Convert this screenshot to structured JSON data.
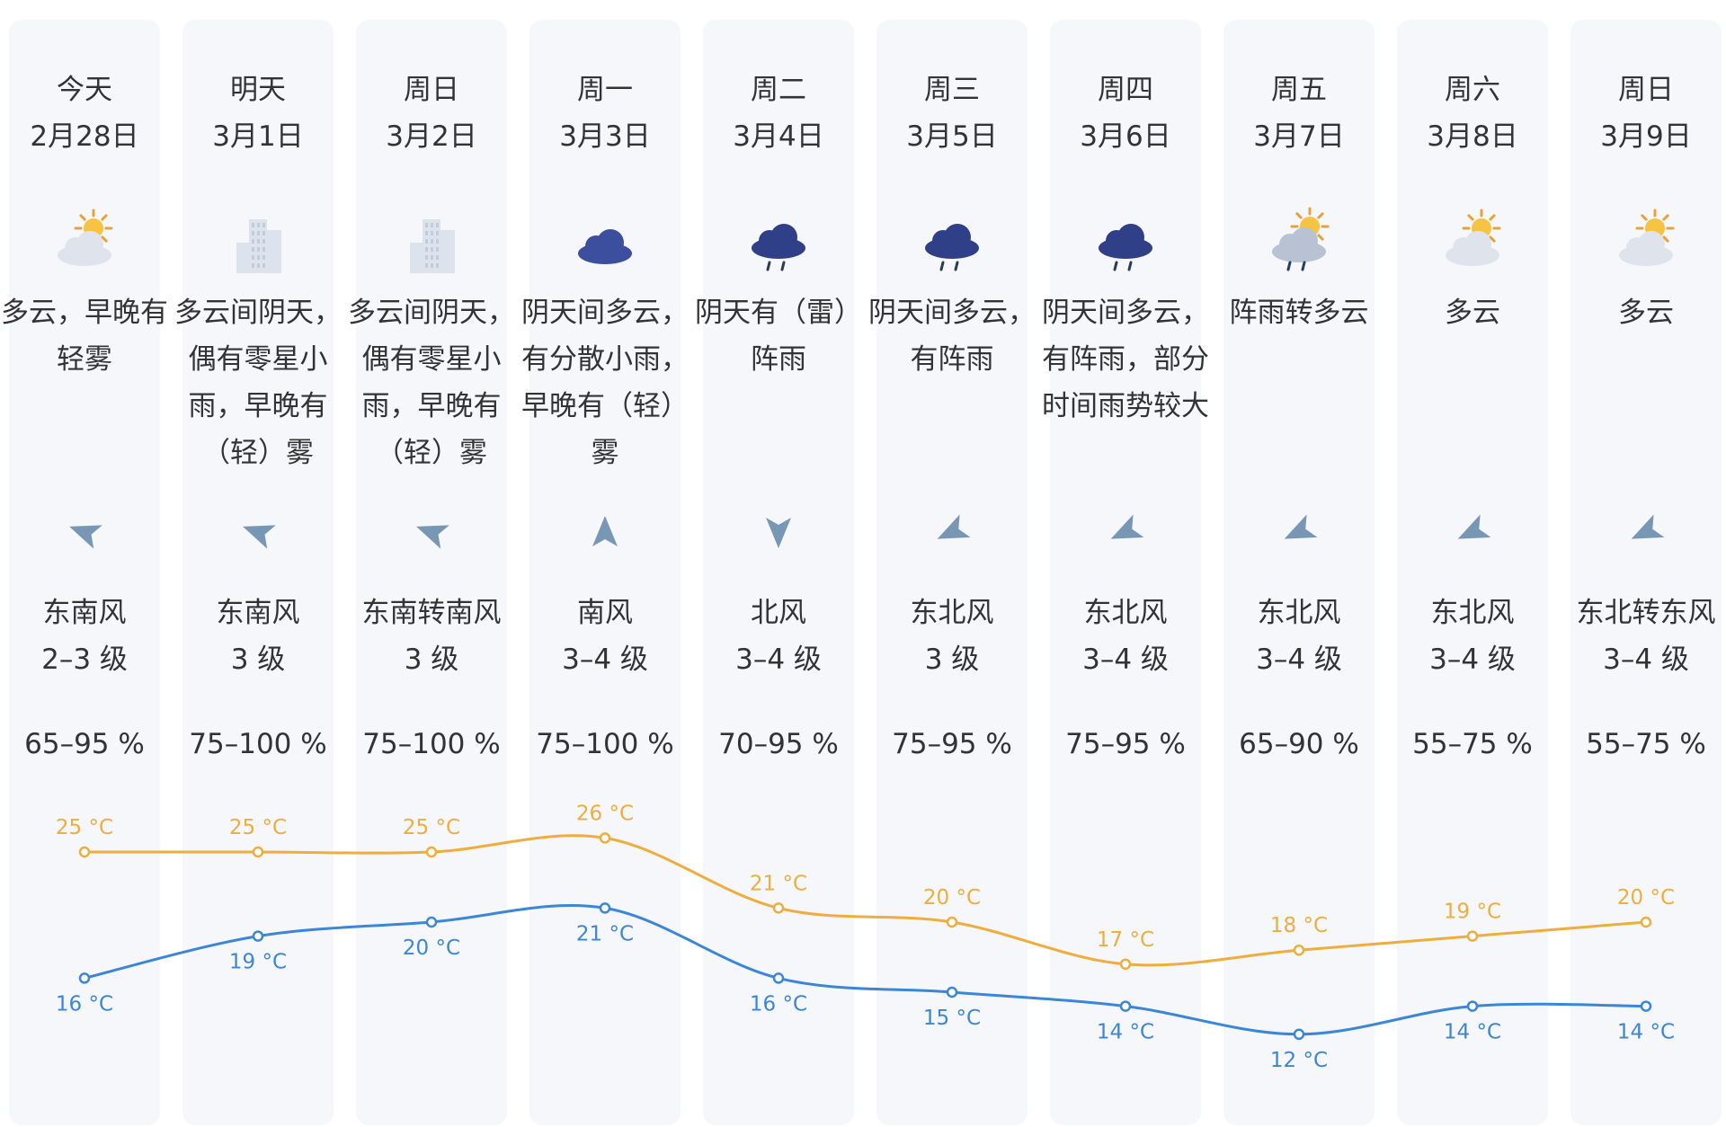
{
  "colors": {
    "high": "#f0ad3e",
    "low": "#3c86d8",
    "text": "#333333",
    "column_bg": "#f5f7fb"
  },
  "days": [
    {
      "day": "今天",
      "date": "2月28日",
      "icon": "partly-cloudy-icon",
      "desc": "多云，早晚有轻雾",
      "wind_dir": "东南风",
      "wind_level": "2–3 级",
      "wind_icon": "arrow-northwest-icon",
      "humidity": "65–95 %",
      "high_label": "25 °C",
      "low_label": "16 °C"
    },
    {
      "day": "明天",
      "date": "3月1日",
      "icon": "haze-buildings-icon",
      "desc": "多云间阴天，偶有零星小雨，早晚有（轻）雾",
      "wind_dir": "东南风",
      "wind_level": "3 级",
      "wind_icon": "arrow-northwest-icon",
      "humidity": "75–100 %",
      "high_label": "25 °C",
      "low_label": "19 °C"
    },
    {
      "day": "周日",
      "date": "3月2日",
      "icon": "haze-buildings-icon",
      "desc": "多云间阴天，偶有零星小雨，早晚有（轻）雾",
      "wind_dir": "东南转南风",
      "wind_level": "3 级",
      "wind_icon": "arrow-northwest-icon",
      "humidity": "75–100 %",
      "high_label": "25 °C",
      "low_label": "20 °C"
    },
    {
      "day": "周一",
      "date": "3月3日",
      "icon": "overcast-icon",
      "desc": "阴天间多云，有分散小雨，早晚有（轻）雾",
      "wind_dir": "南风",
      "wind_level": "3–4 级",
      "wind_icon": "arrow-north-icon",
      "humidity": "75–100 %",
      "high_label": "26 °C",
      "low_label": "21 °C"
    },
    {
      "day": "周二",
      "date": "3月4日",
      "icon": "rain-cloud-icon",
      "desc": "阴天有（雷）阵雨",
      "wind_dir": "北风",
      "wind_level": "3–4 级",
      "wind_icon": "arrow-south-icon",
      "humidity": "70–95 %",
      "high_label": "21 °C",
      "low_label": "16 °C"
    },
    {
      "day": "周三",
      "date": "3月5日",
      "icon": "rain-cloud-icon",
      "desc": "阴天间多云，有阵雨",
      "wind_dir": "东北风",
      "wind_level": "3 级",
      "wind_icon": "arrow-southwest-icon",
      "humidity": "75–95 %",
      "high_label": "20 °C",
      "low_label": "15 °C"
    },
    {
      "day": "周四",
      "date": "3月6日",
      "icon": "rain-cloud-icon",
      "desc": "阴天间多云，有阵雨，部分时间雨势较大",
      "wind_dir": "东北风",
      "wind_level": "3–4 级",
      "wind_icon": "arrow-southwest-icon",
      "humidity": "75–95 %",
      "high_label": "17 °C",
      "low_label": "14 °C"
    },
    {
      "day": "周五",
      "date": "3月7日",
      "icon": "shower-sun-icon",
      "desc": "阵雨转多云",
      "wind_dir": "东北风",
      "wind_level": "3–4 级",
      "wind_icon": "arrow-southwest-icon",
      "humidity": "65–90 %",
      "high_label": "18 °C",
      "low_label": "12 °C"
    },
    {
      "day": "周六",
      "date": "3月8日",
      "icon": "partly-cloudy-icon",
      "desc": "多云",
      "wind_dir": "东北风",
      "wind_level": "3–4 级",
      "wind_icon": "arrow-southwest-icon",
      "humidity": "55–75 %",
      "high_label": "19 °C",
      "low_label": "14 °C"
    },
    {
      "day": "周日",
      "date": "3月9日",
      "icon": "partly-cloudy-icon",
      "desc": "多云",
      "wind_dir": "东北转东风",
      "wind_level": "3–4 级",
      "wind_icon": "arrow-southwest-icon",
      "humidity": "55–75 %",
      "high_label": "20 °C",
      "low_label": "14 °C"
    }
  ],
  "chart_data": {
    "type": "line",
    "categories": [
      "2月28日",
      "3月1日",
      "3月2日",
      "3月3日",
      "3月4日",
      "3月5日",
      "3月6日",
      "3月7日",
      "3月8日",
      "3月9日"
    ],
    "series": [
      {
        "values": [
          25,
          25,
          25,
          26,
          21,
          20,
          17,
          18,
          19,
          20
        ]
      },
      {
        "values": [
          16,
          19,
          20,
          21,
          16,
          15,
          14,
          12,
          14,
          14
        ]
      }
    ],
    "unit": "°C",
    "grid": false,
    "legend": "none"
  }
}
